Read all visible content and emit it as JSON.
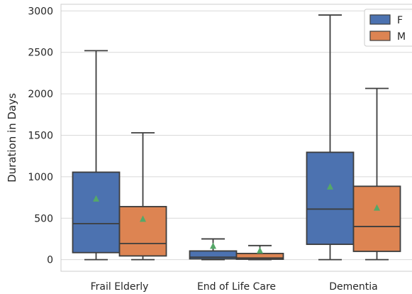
{
  "chart_data": {
    "type": "box",
    "title": "",
    "xlabel": "",
    "ylabel": "Duration in Days",
    "ylim": [
      -140,
      3080
    ],
    "yticks": [
      0,
      500,
      1000,
      1500,
      2000,
      2500,
      3000
    ],
    "grid": "horizontal",
    "legend_position": "top-right",
    "categories": [
      "Frail Elderly",
      "End of Life Care",
      "Dementia"
    ],
    "series": [
      {
        "name": "F",
        "color": "#4C72B0",
        "boxes": [
          {
            "min": 0,
            "q1": 85,
            "median": 435,
            "q3": 1055,
            "max": 2520,
            "mean": 735
          },
          {
            "min": 0,
            "q1": 10,
            "median": 30,
            "q3": 105,
            "max": 250,
            "mean": 165
          },
          {
            "min": 0,
            "q1": 185,
            "median": 610,
            "q3": 1295,
            "max": 2950,
            "mean": 880
          }
        ]
      },
      {
        "name": "M",
        "color": "#DD8452",
        "boxes": [
          {
            "min": 0,
            "q1": 45,
            "median": 195,
            "q3": 640,
            "max": 1530,
            "mean": 490
          },
          {
            "min": 0,
            "q1": 5,
            "median": 20,
            "q3": 75,
            "max": 170,
            "mean": 110
          },
          {
            "min": 0,
            "q1": 100,
            "median": 400,
            "q3": 885,
            "max": 2065,
            "mean": 625
          }
        ]
      }
    ],
    "mean_marker_color": "#55A868"
  }
}
